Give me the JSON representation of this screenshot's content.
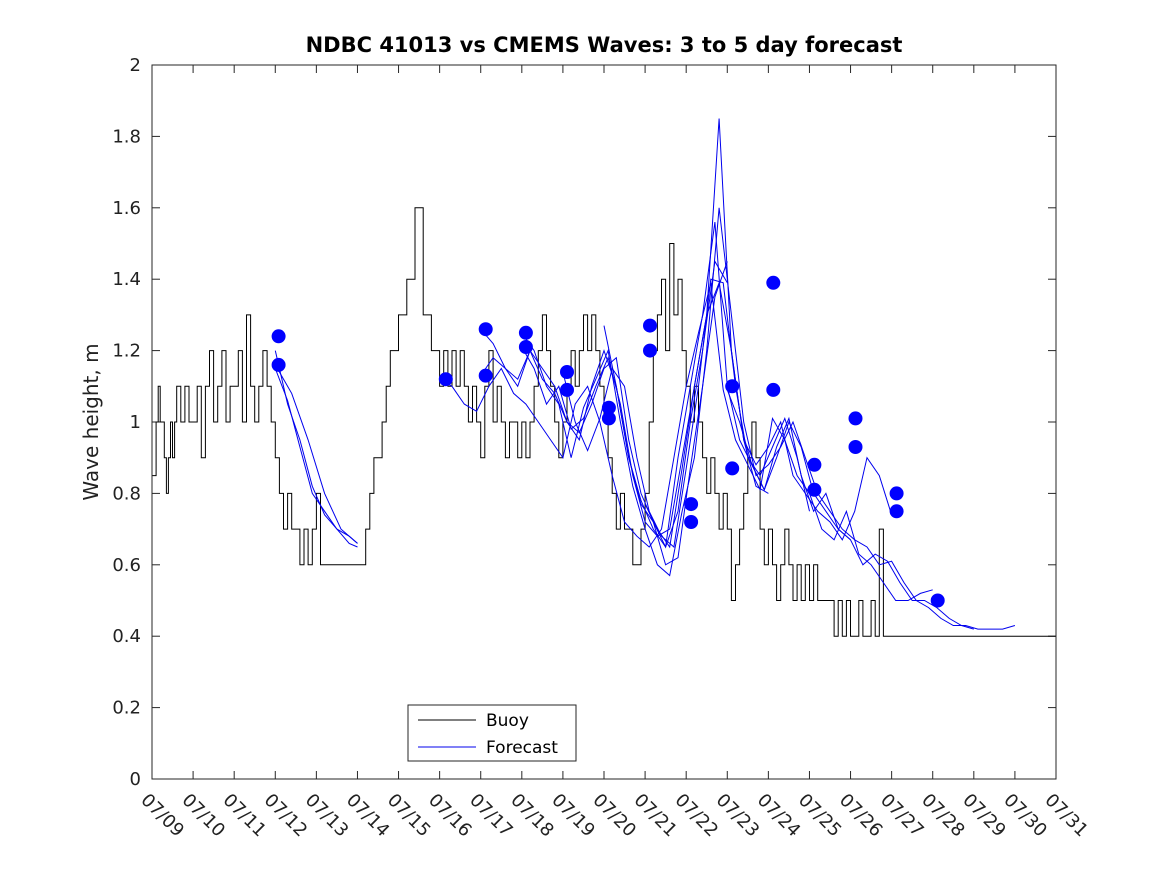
{
  "chart_data": {
    "type": "line",
    "title": "NDBC 41013 vs CMEMS Waves: 3 to 5 day forecast",
    "xlabel": "",
    "ylabel": "Wave height, m",
    "ylim": [
      0,
      2
    ],
    "yticks": [
      "0",
      "0.2",
      "0.4",
      "0.6",
      "0.8",
      "1",
      "1.2",
      "1.4",
      "1.6",
      "1.8",
      "2"
    ],
    "xlim": [
      "07/09",
      "07/31"
    ],
    "xticks": [
      "07/09",
      "07/10",
      "07/11",
      "07/12",
      "07/13",
      "07/14",
      "07/15",
      "07/16",
      "07/17",
      "07/18",
      "07/19",
      "07/20",
      "07/21",
      "07/22",
      "07/23",
      "07/24",
      "07/25",
      "07/26",
      "07/27",
      "07/28",
      "07/29",
      "07/30",
      "07/31"
    ],
    "grid": false,
    "legend_position": "bottom-left",
    "legend": [
      "Buoy",
      "Forecast"
    ],
    "colors": {
      "buoy": "#000000",
      "forecast": "#0000ee",
      "markers": "#0000ff"
    },
    "buoy": {
      "x": [
        0.0,
        0.1,
        0.15,
        0.2,
        0.3,
        0.35,
        0.4,
        0.45,
        0.5,
        0.55,
        0.6,
        0.7,
        0.8,
        0.9,
        1.0,
        1.1,
        1.2,
        1.3,
        1.4,
        1.5,
        1.6,
        1.7,
        1.8,
        1.9,
        2.0,
        2.1,
        2.2,
        2.3,
        2.4,
        2.5,
        2.6,
        2.7,
        2.8,
        2.9,
        3.0,
        3.1,
        3.2,
        3.3,
        3.4,
        3.5,
        3.6,
        3.7,
        3.8,
        3.9,
        4.0,
        4.1,
        4.2,
        4.3,
        4.4,
        4.5,
        4.6,
        4.7,
        4.8,
        4.9,
        5.0,
        5.1,
        5.2,
        5.3,
        5.4,
        5.5,
        5.6,
        5.7,
        5.8,
        5.9,
        6.0,
        6.2,
        6.4,
        6.6,
        6.8,
        7.0,
        7.1,
        7.2,
        7.3,
        7.4,
        7.5,
        7.6,
        7.7,
        7.8,
        7.9,
        8.0,
        8.1,
        8.2,
        8.3,
        8.4,
        8.5,
        8.6,
        8.7,
        8.8,
        8.9,
        9.0,
        9.1,
        9.2,
        9.3,
        9.4,
        9.5,
        9.6,
        9.7,
        9.8,
        9.9,
        10.0,
        10.1,
        10.2,
        10.3,
        10.4,
        10.5,
        10.6,
        10.7,
        10.8,
        10.9,
        11.0,
        11.1,
        11.2,
        11.3,
        11.4,
        11.5,
        11.6,
        11.7,
        11.8,
        11.9,
        12.0,
        12.1,
        12.2,
        12.3,
        12.4,
        12.5,
        12.6,
        12.7,
        12.8,
        12.9,
        13.0,
        13.1,
        13.2,
        13.3,
        13.4,
        13.5,
        13.6,
        13.7,
        13.8,
        13.9,
        14.0,
        14.1,
        14.2,
        14.3,
        14.4,
        14.5,
        14.6,
        14.7,
        14.8,
        14.9,
        15.0,
        15.1,
        15.2,
        15.3,
        15.4,
        15.5,
        15.6,
        15.7,
        15.8,
        15.9,
        16.0,
        16.1,
        16.2,
        16.3,
        16.4,
        16.5,
        16.6,
        16.7,
        16.8,
        16.9,
        17.0,
        17.1,
        17.2,
        17.3,
        17.4,
        17.5,
        17.6,
        17.7,
        17.8,
        17.9,
        18.0,
        18.1,
        18.2,
        18.3,
        18.4,
        18.5,
        18.6,
        18.7,
        18.8,
        18.9,
        19.0,
        19.1,
        19.2,
        19.3,
        19.4,
        19.5,
        19.6,
        19.7,
        19.8,
        19.9,
        20.0,
        20.1,
        20.2,
        20.3,
        20.4,
        20.5,
        20.6,
        20.7,
        20.8,
        20.9,
        21.0,
        21.2,
        21.4,
        21.6,
        21.8,
        22.0
      ],
      "y": [
        0.85,
        1.0,
        1.1,
        1.0,
        0.9,
        0.8,
        0.9,
        1.0,
        0.9,
        1.0,
        1.1,
        1.0,
        1.1,
        1.0,
        1.0,
        1.1,
        0.9,
        1.1,
        1.2,
        1.0,
        1.1,
        1.2,
        1.0,
        1.1,
        1.1,
        1.2,
        1.0,
        1.3,
        1.1,
        1.0,
        1.1,
        1.2,
        1.1,
        1.0,
        0.9,
        0.8,
        0.7,
        0.8,
        0.7,
        0.7,
        0.6,
        0.7,
        0.6,
        0.7,
        0.8,
        0.6,
        0.6,
        0.6,
        0.6,
        0.6,
        0.6,
        0.6,
        0.6,
        0.6,
        0.6,
        0.6,
        0.7,
        0.8,
        0.9,
        0.9,
        1.0,
        1.1,
        1.2,
        1.2,
        1.3,
        1.4,
        1.6,
        1.3,
        1.2,
        1.1,
        1.2,
        1.1,
        1.2,
        1.1,
        1.2,
        1.1,
        1.0,
        1.1,
        1.0,
        0.9,
        1.1,
        1.2,
        1.0,
        1.1,
        1.0,
        0.9,
        1.0,
        1.0,
        0.9,
        1.0,
        0.9,
        1.0,
        1.1,
        1.2,
        1.3,
        1.2,
        1.1,
        1.0,
        0.9,
        1.0,
        1.1,
        1.2,
        1.1,
        1.2,
        1.3,
        1.2,
        1.3,
        1.2,
        1.1,
        1.0,
        0.9,
        0.8,
        0.7,
        0.8,
        0.7,
        0.7,
        0.6,
        0.6,
        0.7,
        0.8,
        1.0,
        1.2,
        1.3,
        1.4,
        1.2,
        1.5,
        1.3,
        1.4,
        1.2,
        1.1,
        1.0,
        1.1,
        1.0,
        0.9,
        0.8,
        0.9,
        0.8,
        0.7,
        0.8,
        0.7,
        0.5,
        0.6,
        0.7,
        0.8,
        0.9,
        1.0,
        0.9,
        0.7,
        0.6,
        0.7,
        0.6,
        0.5,
        0.6,
        0.7,
        0.6,
        0.5,
        0.6,
        0.5,
        0.6,
        0.5,
        0.6,
        0.5,
        0.5,
        0.5,
        0.5,
        0.4,
        0.5,
        0.4,
        0.5,
        0.4,
        0.4,
        0.5,
        0.4,
        0.4,
        0.5,
        0.4,
        0.7,
        0.4,
        0.4,
        0.4,
        0.4,
        0.4,
        0.4,
        0.4,
        0.4,
        0.4,
        0.4,
        0.4,
        0.4,
        0.4,
        0.4,
        0.4,
        0.4,
        0.4,
        0.4,
        0.4,
        0.4,
        0.4,
        0.4,
        0.4,
        0.4,
        0.4,
        0.4,
        0.4,
        0.4,
        0.4,
        0.4,
        0.4,
        0.4,
        0.4,
        0.4,
        0.4,
        0.4,
        0.4,
        0.4
      ]
    },
    "forecast_series": [
      {
        "x": [
          3.0,
          3.3,
          3.6,
          3.9,
          4.2,
          4.5,
          4.8,
          5.0
        ],
        "y": [
          1.2,
          1.05,
          0.95,
          0.82,
          0.74,
          0.7,
          0.66,
          0.65
        ]
      },
      {
        "x": [
          3.0,
          3.3,
          3.6,
          3.9,
          4.2,
          4.5,
          4.8,
          5.0
        ],
        "y": [
          1.15,
          1.06,
          0.93,
          0.8,
          0.75,
          0.7,
          0.68,
          0.66
        ]
      },
      {
        "x": [
          3.0,
          3.4,
          3.8,
          4.2,
          4.6,
          5.0
        ],
        "y": [
          1.16,
          1.08,
          0.95,
          0.8,
          0.7,
          0.66
        ]
      },
      {
        "x": [
          7.0,
          7.3,
          7.6,
          7.9,
          8.2,
          8.5,
          8.8,
          9.1,
          9.4,
          9.7,
          10.0,
          10.3,
          10.6,
          10.9,
          11.2,
          11.5,
          11.8,
          12.1,
          12.4,
          12.7,
          13.0
        ],
        "y": [
          1.12,
          1.1,
          1.05,
          1.03,
          1.1,
          1.15,
          1.08,
          1.05,
          1.0,
          0.95,
          0.9,
          1.05,
          1.1,
          1.0,
          0.85,
          0.72,
          0.68,
          0.65,
          0.7,
          0.9,
          1.1
        ]
      },
      {
        "x": [
          8.0,
          8.3,
          8.6,
          8.9,
          9.2,
          9.5,
          9.8,
          10.1,
          10.4,
          10.7,
          11.0,
          11.3,
          11.6,
          11.9,
          12.2,
          12.5,
          12.8,
          13.1,
          13.4,
          13.7,
          14.0
        ],
        "y": [
          1.26,
          1.22,
          1.15,
          1.1,
          1.2,
          1.12,
          1.08,
          1.0,
          0.95,
          1.1,
          1.2,
          1.1,
          0.9,
          0.78,
          0.7,
          0.65,
          0.75,
          1.0,
          1.2,
          1.45,
          1.39
        ]
      },
      {
        "x": [
          8.0,
          8.3,
          8.6,
          8.9,
          9.2,
          9.5,
          9.8,
          10.1,
          10.4,
          10.7,
          11.0,
          11.3,
          11.6,
          11.9,
          12.2,
          12.5,
          12.8,
          13.1,
          13.4,
          13.7,
          14.0
        ],
        "y": [
          1.13,
          1.18,
          1.15,
          1.12,
          1.2,
          1.15,
          1.1,
          1.0,
          0.97,
          1.05,
          1.15,
          1.18,
          0.95,
          0.8,
          0.72,
          0.6,
          0.62,
          0.87,
          1.1,
          1.35,
          1.45
        ]
      },
      {
        "x": [
          9.0,
          9.3,
          9.6,
          9.9,
          10.2,
          10.5,
          10.8,
          11.1,
          11.4,
          11.7,
          12.0,
          12.3,
          12.6,
          12.9,
          13.2,
          13.5,
          13.8,
          14.1,
          14.4,
          14.7,
          15.0
        ],
        "y": [
          1.25,
          1.2,
          1.1,
          1.05,
          0.9,
          1.04,
          1.12,
          1.2,
          1.0,
          0.82,
          0.7,
          0.6,
          0.57,
          0.75,
          0.9,
          1.2,
          1.6,
          1.3,
          1.0,
          0.85,
          0.88
        ]
      },
      {
        "x": [
          9.0,
          9.3,
          9.6,
          9.9,
          10.2,
          10.5,
          10.8,
          11.1,
          11.4,
          11.7,
          12.0,
          12.3,
          12.6,
          12.9,
          13.2,
          13.5,
          13.8,
          14.1,
          14.4,
          14.7,
          15.0
        ],
        "y": [
          1.21,
          1.15,
          1.05,
          1.1,
          0.98,
          1.01,
          1.1,
          1.18,
          1.05,
          0.85,
          0.72,
          0.68,
          0.7,
          0.9,
          1.1,
          1.3,
          1.85,
          1.2,
          0.95,
          0.82,
          0.8
        ]
      },
      {
        "x": [
          10.0,
          10.3,
          10.6,
          10.9,
          11.2,
          11.5,
          11.8,
          12.1,
          12.4,
          12.7,
          13.0,
          13.3,
          13.6,
          13.9,
          14.2,
          14.5,
          14.8,
          15.1,
          15.4,
          15.7,
          16.0
        ],
        "y": [
          1.14,
          1.0,
          0.92,
          1.01,
          1.15,
          1.1,
          0.9,
          0.75,
          0.68,
          0.65,
          0.87,
          1.1,
          1.4,
          1.39,
          1.1,
          0.9,
          0.85,
          0.93,
          1.01,
          0.9,
          0.75
        ]
      },
      {
        "x": [
          11.0,
          11.3,
          11.6,
          11.9,
          12.2,
          12.5,
          12.8,
          13.1,
          13.4,
          13.7,
          14.0,
          14.3,
          14.6,
          14.9,
          15.2,
          15.5,
          15.8,
          16.1,
          16.4,
          16.7,
          17.0
        ],
        "y": [
          1.27,
          1.1,
          0.9,
          0.77,
          0.72,
          0.65,
          0.9,
          1.1,
          1.3,
          1.56,
          1.1,
          0.95,
          0.88,
          0.81,
          0.9,
          1.0,
          0.93,
          0.8,
          0.75,
          0.7,
          0.67
        ]
      },
      {
        "x": [
          12.0,
          12.3,
          12.6,
          12.9,
          13.2,
          13.5,
          13.8,
          14.1,
          14.4,
          14.7,
          15.0,
          15.3,
          15.6,
          15.9,
          16.2,
          16.5,
          16.8,
          17.1,
          17.4,
          17.7,
          18.0
        ],
        "y": [
          0.77,
          0.7,
          0.65,
          0.87,
          1.1,
          1.3,
          1.39,
          1.2,
          0.95,
          0.88,
          0.93,
          1.0,
          0.85,
          0.8,
          0.75,
          0.72,
          0.67,
          0.75,
          0.9,
          0.85,
          0.74
        ]
      },
      {
        "x": [
          13.0,
          13.3,
          13.6,
          13.9,
          14.2,
          14.5,
          14.8,
          15.1,
          15.4,
          15.7,
          16.0,
          16.3,
          16.6,
          16.9,
          17.2,
          17.5,
          17.8,
          18.1,
          18.4,
          18.7,
          19.0
        ],
        "y": [
          1.1,
          1.25,
          1.39,
          1.09,
          0.95,
          0.88,
          0.81,
          1.01,
          0.95,
          0.85,
          0.8,
          0.7,
          0.67,
          0.75,
          0.63,
          0.6,
          0.55,
          0.5,
          0.5,
          0.52,
          0.53
        ]
      },
      {
        "x": [
          14.0,
          14.3,
          14.6,
          14.9,
          15.2,
          15.5,
          15.8,
          16.1,
          16.4,
          16.7,
          17.0,
          17.3,
          17.6,
          17.9,
          18.2,
          18.5,
          18.8,
          19.1,
          19.4,
          19.7,
          20.0
        ],
        "y": [
          1.09,
          1.0,
          0.88,
          0.81,
          0.93,
          1.01,
          0.85,
          0.75,
          0.8,
          0.7,
          0.67,
          0.6,
          0.63,
          0.61,
          0.55,
          0.5,
          0.5,
          0.48,
          0.45,
          0.43,
          0.42
        ]
      },
      {
        "x": [
          15.0,
          15.3,
          15.6,
          15.9,
          16.2,
          16.5,
          16.8,
          17.1,
          17.4,
          17.7,
          18.0,
          18.3,
          18.6,
          18.9,
          19.2,
          19.5,
          19.8,
          20.1,
          20.4,
          20.7,
          21.0
        ],
        "y": [
          0.88,
          0.93,
          1.0,
          0.9,
          0.8,
          0.75,
          0.7,
          0.67,
          0.65,
          0.6,
          0.61,
          0.55,
          0.5,
          0.48,
          0.45,
          0.43,
          0.43,
          0.42,
          0.42,
          0.42,
          0.43
        ]
      }
    ],
    "forecast_markers": {
      "x": [
        3.08,
        3.08,
        7.15,
        8.12,
        8.12,
        9.1,
        9.1,
        10.1,
        10.1,
        11.12,
        11.12,
        12.12,
        12.12,
        13.12,
        13.12,
        14.12,
        14.12,
        15.12,
        15.12,
        16.12,
        16.12,
        17.12,
        17.12,
        18.12,
        18.12,
        19.12
      ],
      "y": [
        1.24,
        1.16,
        1.12,
        1.26,
        1.13,
        1.25,
        1.21,
        1.14,
        1.09,
        1.04,
        1.01,
        1.27,
        1.2,
        0.77,
        0.72,
        1.1,
        0.87,
        1.39,
        1.09,
        0.88,
        0.81,
        1.01,
        0.93,
        0.8,
        0.75,
        0.5
      ]
    }
  }
}
